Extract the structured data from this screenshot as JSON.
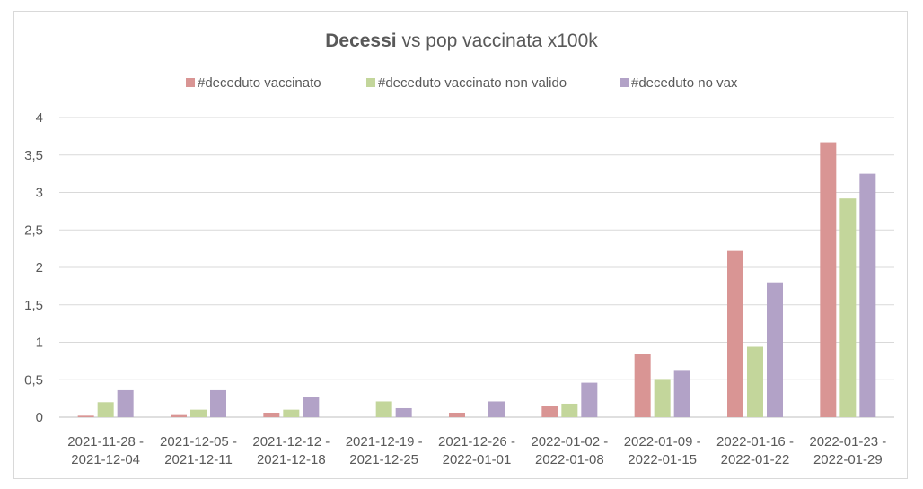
{
  "chart_data": {
    "type": "bar",
    "title": {
      "bold": "Decessi",
      "rest": " vs pop vaccinata x100k"
    },
    "xlabel": "",
    "ylabel": "",
    "ylim": [
      0,
      4
    ],
    "yticks": [
      0,
      0.5,
      1,
      1.5,
      2,
      2.5,
      3,
      3.5,
      4
    ],
    "ytick_labels": [
      "0",
      "0,5",
      "1",
      "1,5",
      "2",
      "2,5",
      "3",
      "3,5",
      "4"
    ],
    "grid": true,
    "legend_position": "top",
    "categories": [
      [
        "2021-11-28 -",
        "2021-12-04"
      ],
      [
        "2021-12-05 -",
        "2021-12-11"
      ],
      [
        "2021-12-12 -",
        "2021-12-18"
      ],
      [
        "2021-12-19 -",
        "2021-12-25"
      ],
      [
        "2021-12-26 -",
        "2022-01-01"
      ],
      [
        "2022-01-02 -",
        "2022-01-08"
      ],
      [
        "2022-01-09 -",
        "2022-01-15"
      ],
      [
        "2022-01-16 -",
        "2022-01-22"
      ],
      [
        "2022-01-23 -",
        "2022-01-29"
      ]
    ],
    "series": [
      {
        "name": "#deceduto vaccinato",
        "color": "#d99594",
        "values": [
          0.02,
          0.04,
          0.06,
          0.0,
          0.06,
          0.15,
          0.84,
          2.22,
          3.67
        ]
      },
      {
        "name": "#deceduto vaccinato non valido",
        "color": "#c3d69b",
        "values": [
          0.2,
          0.1,
          0.1,
          0.21,
          0.0,
          0.18,
          0.51,
          0.94,
          2.92
        ]
      },
      {
        "name": "#deceduto no vax",
        "color": "#b2a2c7",
        "values": [
          0.36,
          0.36,
          0.27,
          0.12,
          0.21,
          0.46,
          0.63,
          1.8,
          3.25
        ]
      }
    ]
  }
}
